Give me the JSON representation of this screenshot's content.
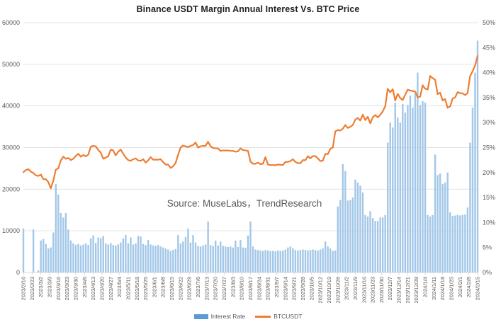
{
  "title": "Binance USDT Margin Annual Interest Vs. BTC Price",
  "source_note": "Source: MuseLabs，TrendResearch",
  "legend": {
    "interest_rate": "Interest Rate",
    "btcusdt": "BTCUSDT"
  },
  "colors": {
    "bar": "#A3C7E8",
    "bar_legend": "#5B9BD5",
    "line": "#ED7D31",
    "grid": "#E3E3E3",
    "axis_line": "#D9D9D9",
    "axis_text": "#595959",
    "title_text": "#222222",
    "source_text": "#595959",
    "background": "#FFFFFF"
  },
  "chart_data": {
    "type": "combo",
    "title": "Binance USDT Margin Annual Interest Vs. BTC Price",
    "legend_position": "bottom",
    "grid": "horizontal, aligned to left axis ticks",
    "x": {
      "start_date": "2023/2/16",
      "end_date": "2024/2/15",
      "cadence_days": 2,
      "total_days": 364,
      "tick_labels": [
        "2023/2/16",
        "2023/2/23",
        "2023/3/2",
        "2023/3/9",
        "2023/3/16",
        "2023/3/23",
        "2023/3/30",
        "2023/4/6",
        "2023/4/13",
        "2023/4/20",
        "2023/4/27",
        "2023/5/4",
        "2023/5/11",
        "2023/5/18",
        "2023/5/25",
        "2023/6/1",
        "2023/6/8",
        "2023/6/15",
        "2023/6/22",
        "2023/6/29",
        "2023/7/6",
        "2023/7/13",
        "2023/7/20",
        "2023/7/27",
        "2023/8/3",
        "2023/8/10",
        "2023/8/17",
        "2023/8/24",
        "2023/8/31",
        "2023/9/7",
        "2023/9/14",
        "2023/9/21",
        "2023/9/28",
        "2023/10/5",
        "2023/10/12",
        "2023/10/19",
        "2023/10/26",
        "2023/11/2",
        "2023/11/9",
        "2023/11/16",
        "2023/11/23",
        "2023/11/30",
        "2023/12/7",
        "2023/12/14",
        "2023/12/21",
        "2023/12/28",
        "2024/1/4",
        "2024/1/11",
        "2024/1/18",
        "2024/1/25",
        "2024/2/1",
        "2024/2/8",
        "2024/2/15"
      ]
    },
    "axes": {
      "left": {
        "min": 0,
        "max": 60000,
        "tick_labels": [
          "0",
          "10000",
          "20000",
          "30000",
          "40000",
          "50000",
          "60000"
        ]
      },
      "right": {
        "min": 0,
        "max": 50,
        "unit": "%",
        "tick_labels": [
          "0%",
          "5%",
          "10%",
          "15%",
          "20%",
          "25%",
          "30%",
          "35%",
          "40%",
          "45%",
          "50%"
        ]
      }
    },
    "series": [
      {
        "name": "Interest Rate",
        "type": "bar",
        "axis": "right",
        "unit": "%",
        "values": [
          8.8,
          0,
          0,
          0,
          8.6,
          0,
          0.4,
          6.4,
          6.7,
          5.7,
          4.8,
          5.0,
          8.0,
          17.7,
          15.6,
          11.9,
          11.0,
          11.9,
          8.6,
          6.4,
          5.8,
          5.5,
          5.7,
          5.4,
          5.6,
          5.8,
          5.5,
          6.8,
          7.4,
          5.9,
          7.0,
          6.9,
          7.3,
          5.8,
          5.6,
          5.9,
          5.5,
          5.4,
          5.6,
          6.0,
          6.8,
          7.5,
          5.8,
          7.0,
          5.6,
          5.8,
          7.3,
          7.2,
          5.7,
          5.5,
          6.5,
          5.6,
          5.4,
          5.3,
          5.5,
          5.2,
          5.0,
          4.8,
          4.6,
          4.3,
          4.5,
          4.7,
          7.5,
          5.8,
          6.2,
          7.1,
          8.8,
          6.0,
          7.5,
          6.0,
          5.3,
          5.2,
          5.4,
          5.6,
          10.2,
          5.5,
          5.3,
          6.4,
          5.4,
          6.2,
          5.3,
          5.2,
          5.1,
          5.2,
          5.0,
          6.4,
          5.1,
          6.5,
          5.0,
          4.9,
          7.4,
          10.2,
          5.2,
          4.6,
          4.5,
          4.4,
          4.3,
          4.5,
          4.4,
          4.3,
          4.3,
          4.2,
          4.4,
          4.3,
          4.4,
          4.6,
          5.0,
          5.2,
          4.8,
          4.5,
          4.4,
          4.5,
          4.6,
          4.5,
          4.4,
          4.5,
          4.6,
          4.5,
          4.4,
          4.6,
          4.8,
          6.2,
          5.2,
          4.8,
          4.3,
          4.4,
          13.2,
          14.5,
          21.7,
          20.3,
          14.4,
          14.5,
          15.0,
          18.6,
          18.0,
          17.4,
          16.0,
          11.5,
          11.2,
          12.3,
          10.9,
          10.3,
          10.3,
          11.0,
          11.0,
          11.5,
          26.0,
          30.0,
          29.0,
          34.0,
          31.0,
          30.0,
          33.7,
          32.0,
          33.5,
          35.4,
          33.0,
          35.8,
          40.0,
          33.5,
          34.3,
          34.0,
          11.5,
          11.2,
          11.5,
          23.6,
          19.5,
          19.8,
          17.7,
          18.0,
          20.0,
          12.0,
          11.3,
          11.4,
          11.5,
          11.4,
          11.5,
          11.6,
          13.0,
          26.0,
          33.0,
          40.0,
          46.4
        ]
      },
      {
        "name": "BTCUSDT",
        "type": "line",
        "axis": "left",
        "unit": "USD",
        "values": [
          24100,
          24600,
          24800,
          24200,
          23900,
          23300,
          23200,
          23500,
          22400,
          22400,
          21700,
          20200,
          22100,
          24700,
          25000,
          26900,
          27800,
          27300,
          27500,
          27000,
          27300,
          28000,
          28500,
          27800,
          28200,
          27900,
          28300,
          30200,
          30400,
          30300,
          29400,
          28800,
          27300,
          27600,
          27900,
          29500,
          29300,
          28100,
          29000,
          29500,
          28500,
          27600,
          27000,
          26800,
          27200,
          27400,
          26900,
          26800,
          27200,
          26400,
          26900,
          27700,
          27100,
          27100,
          27100,
          27200,
          26500,
          25900,
          25900,
          25100,
          25500,
          26300,
          28300,
          30000,
          30500,
          30300,
          30100,
          30400,
          30600,
          31200,
          30000,
          30300,
          30400,
          30400,
          31400,
          30300,
          29900,
          29800,
          29800,
          29200,
          29300,
          29300,
          29300,
          29200,
          29200,
          29000,
          29100,
          29800,
          29400,
          29300,
          29200,
          26600,
          26100,
          26100,
          26400,
          26000,
          26100,
          27700,
          25900,
          25800,
          25800,
          25750,
          25900,
          25850,
          25800,
          26550,
          26550,
          26750,
          27200,
          26550,
          26250,
          26250,
          27000,
          26950,
          27950,
          27400,
          27950,
          27950,
          27400,
          26750,
          26850,
          28500,
          28400,
          29700,
          30000,
          33900,
          34200,
          34100,
          34500,
          35400,
          34700,
          35000,
          35400,
          36700,
          37100,
          36500,
          37900,
          36600,
          37400,
          35800,
          37300,
          37800,
          37250,
          37850,
          38700,
          39950,
          44100,
          43300,
          44000,
          41300,
          42900,
          41900,
          41400,
          42700,
          43900,
          43700,
          43600,
          43450,
          42050,
          42250,
          44950,
          44150,
          43950,
          47200,
          46650,
          46300,
          42850,
          43150,
          41300,
          41650,
          39550,
          39900,
          41800,
          42050,
          43300,
          43100,
          43000,
          42600,
          43100,
          47150,
          48300,
          49750,
          52000
        ]
      }
    ]
  }
}
